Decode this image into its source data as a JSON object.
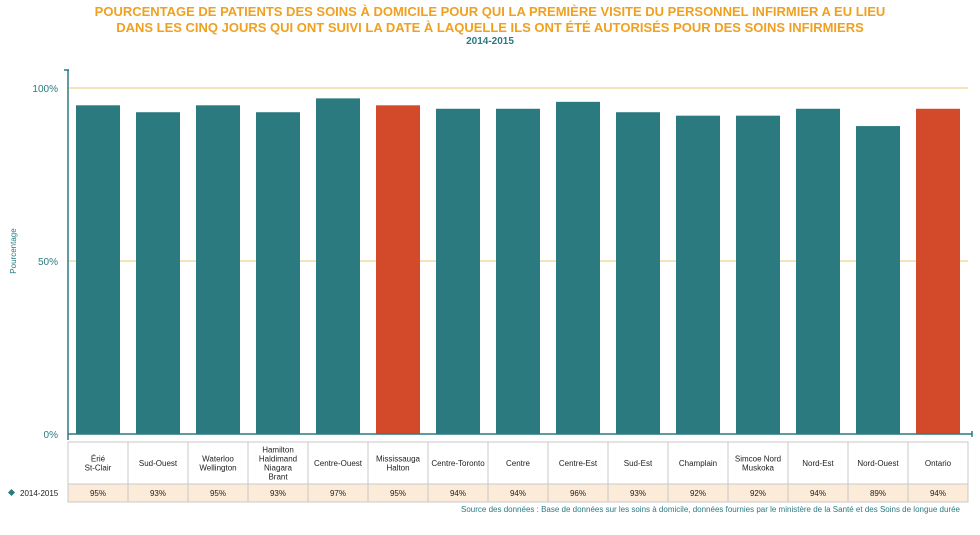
{
  "title_line1": "POURCENTAGE DE PATIENTS DES SOINS À DOMICILE POUR QUI LA PREMIÈRE VISITE DU PERSONNEL INFIRMIER A EU LIEU",
  "title_line2": "DANS LES CINQ JOURS QUI ONT SUIVI LA DATE À LAQUELLE ILS ONT ÉTÉ AUTORISÉS POUR DES SOINS INFIRMIERS",
  "subtitle": "2014-2015",
  "source": "Source des données : Base de données sur les soins à domicile, données fournies par le ministère de la Santé et des Soins de longue durée",
  "colors": {
    "bar": "#2A7A80",
    "highlight": "#D24A2A",
    "title": "#F0A020",
    "grid": "#E8C870",
    "table_row": "#FBEBD8"
  },
  "chart_data": {
    "type": "bar",
    "ylabel": "Pourcentage",
    "ylim": [
      0,
      100
    ],
    "yticks": [
      "0%",
      "50%",
      "100%"
    ],
    "categories": [
      "Érié St-Clair",
      "Sud-Ouest",
      "Waterloo Wellington",
      "Hamilton Haldimand Niagara Brant",
      "Centre-Ouest",
      "Mississauga Halton",
      "Centre-Toronto",
      "Centre",
      "Centre-Est",
      "Sud-Est",
      "Champlain",
      "Simcoe Nord Muskoka",
      "Nord-Est",
      "Nord-Ouest",
      "Ontario"
    ],
    "series": [
      {
        "name": "2014-2015",
        "values": [
          95,
          93,
          95,
          93,
          97,
          95,
          94,
          94,
          96,
          93,
          92,
          92,
          94,
          89,
          94
        ],
        "labels": [
          "95%",
          "93%",
          "95%",
          "93%",
          "97%",
          "95%",
          "94%",
          "94%",
          "96%",
          "93%",
          "92%",
          "92%",
          "94%",
          "89%",
          "94%"
        ]
      }
    ],
    "highlighted": [
      "Mississauga Halton",
      "Ontario"
    ]
  }
}
